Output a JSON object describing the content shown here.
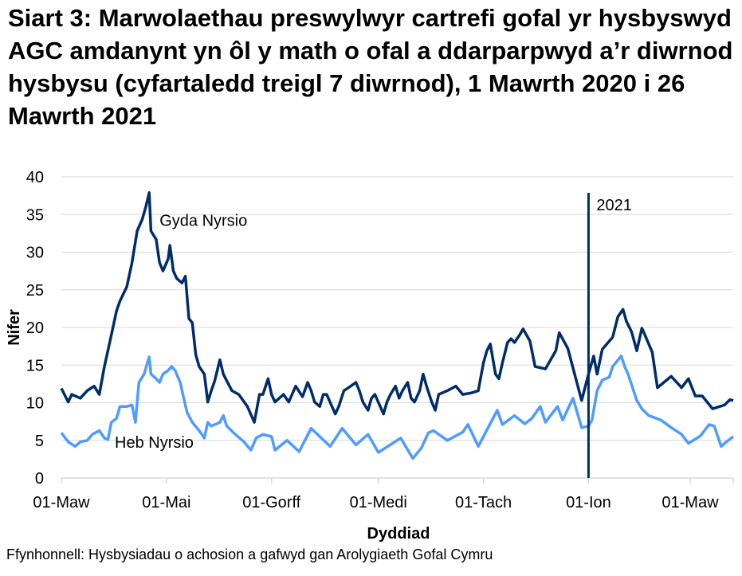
{
  "chart_data": {
    "type": "line",
    "title": "Siart 3: Marwolaethau preswylwyr cartrefi gofal yr hysbyswyd AGC amdanynt yn ôl y math o ofal a ddarparpwyd a’r diwrnod hysbysu (cyfartaledd treigl 7 diwrnod), 1 Mawrth 2020 i 26 Mawrth 2021",
    "xlabel": "Dyddiad",
    "ylabel": "Nifer",
    "x_units": "days since 2020-03-01",
    "xlim": [
      0,
      390
    ],
    "ylim": [
      0,
      40
    ],
    "yticks": [
      0,
      5,
      10,
      15,
      20,
      25,
      30,
      35,
      40
    ],
    "xticks": [
      {
        "day": 0,
        "label": "01-Maw"
      },
      {
        "day": 61,
        "label": "01-Mai"
      },
      {
        "day": 122,
        "label": "01-Gorff"
      },
      {
        "day": 184,
        "label": "01-Medi"
      },
      {
        "day": 245,
        "label": "01-Tach"
      },
      {
        "day": 306,
        "label": "01-Ion"
      },
      {
        "day": 365,
        "label": "01-Maw"
      }
    ],
    "grid": true,
    "annotations": [
      {
        "day": 306,
        "label": "2021",
        "type": "vertical-line"
      }
    ],
    "series": [
      {
        "name": "Gyda Nyrsio",
        "color": "#002d6a",
        "label_pos": [
          57,
          33.5
        ],
        "points": [
          [
            0,
            11.9
          ],
          [
            4,
            10.1
          ],
          [
            6,
            11.1
          ],
          [
            11,
            10.6
          ],
          [
            15,
            11.6
          ],
          [
            19,
            12.2
          ],
          [
            22,
            11.1
          ],
          [
            25,
            14.8
          ],
          [
            29,
            19.0
          ],
          [
            32,
            22.2
          ],
          [
            34,
            23.5
          ],
          [
            38,
            25.4
          ],
          [
            41,
            28.6
          ],
          [
            44,
            32.8
          ],
          [
            47,
            34.4
          ],
          [
            49,
            36.0
          ],
          [
            51,
            37.9
          ],
          [
            52,
            32.8
          ],
          [
            55,
            31.7
          ],
          [
            57,
            28.6
          ],
          [
            59,
            27.5
          ],
          [
            62,
            29.1
          ],
          [
            63,
            30.9
          ],
          [
            65,
            27.5
          ],
          [
            67,
            26.5
          ],
          [
            70,
            25.9
          ],
          [
            72,
            26.8
          ],
          [
            74,
            21.2
          ],
          [
            76,
            20.6
          ],
          [
            78,
            16.4
          ],
          [
            80,
            14.8
          ],
          [
            83,
            13.8
          ],
          [
            85,
            10.1
          ],
          [
            87,
            11.6
          ],
          [
            89,
            12.9
          ],
          [
            92,
            15.7
          ],
          [
            94,
            13.8
          ],
          [
            96,
            12.9
          ],
          [
            99,
            11.6
          ],
          [
            103,
            11.1
          ],
          [
            108,
            9.5
          ],
          [
            112,
            7.4
          ],
          [
            115,
            11.1
          ],
          [
            117,
            11.1
          ],
          [
            120,
            13.2
          ],
          [
            122,
            11.1
          ],
          [
            124,
            10.1
          ],
          [
            129,
            11.1
          ],
          [
            132,
            10.1
          ],
          [
            136,
            12.2
          ],
          [
            140,
            10.8
          ],
          [
            143,
            12.7
          ],
          [
            145,
            11.6
          ],
          [
            147,
            10.1
          ],
          [
            150,
            9.5
          ],
          [
            152,
            11.1
          ],
          [
            154,
            11.1
          ],
          [
            159,
            8.5
          ],
          [
            161,
            9.5
          ],
          [
            164,
            11.6
          ],
          [
            168,
            12.2
          ],
          [
            171,
            12.7
          ],
          [
            173,
            11.6
          ],
          [
            175,
            10.1
          ],
          [
            178,
            9.0
          ],
          [
            180,
            10.6
          ],
          [
            182,
            11.1
          ],
          [
            187,
            8.5
          ],
          [
            189,
            10.1
          ],
          [
            191,
            11.1
          ],
          [
            194,
            12.2
          ],
          [
            196,
            10.6
          ],
          [
            198,
            11.6
          ],
          [
            201,
            12.7
          ],
          [
            203,
            10.6
          ],
          [
            205,
            10.1
          ],
          [
            208,
            11.6
          ],
          [
            210,
            13.8
          ],
          [
            212,
            12.2
          ],
          [
            215,
            10.1
          ],
          [
            217,
            9.0
          ],
          [
            219,
            11.1
          ],
          [
            224,
            11.6
          ],
          [
            229,
            12.2
          ],
          [
            233,
            11.1
          ],
          [
            238,
            11.3
          ],
          [
            242,
            11.6
          ],
          [
            245,
            15.3
          ],
          [
            247,
            16.9
          ],
          [
            249,
            17.8
          ],
          [
            252,
            13.8
          ],
          [
            254,
            13.2
          ],
          [
            256,
            15.3
          ],
          [
            259,
            18.0
          ],
          [
            261,
            18.5
          ],
          [
            263,
            18.0
          ],
          [
            266,
            19.0
          ],
          [
            268,
            19.8
          ],
          [
            272,
            18.2
          ],
          [
            275,
            14.8
          ],
          [
            281,
            14.5
          ],
          [
            287,
            16.9
          ],
          [
            289,
            19.3
          ],
          [
            294,
            17.2
          ],
          [
            297,
            14.6
          ],
          [
            302,
            10.3
          ],
          [
            306,
            13.8
          ],
          [
            309,
            16.2
          ],
          [
            311,
            13.8
          ],
          [
            314,
            17.1
          ],
          [
            320,
            18.7
          ],
          [
            323,
            21.4
          ],
          [
            326,
            22.4
          ],
          [
            328,
            20.8
          ],
          [
            331,
            19.4
          ],
          [
            334,
            16.9
          ],
          [
            337,
            19.9
          ],
          [
            338,
            19.4
          ],
          [
            343,
            16.7
          ],
          [
            346,
            12.0
          ],
          [
            354,
            13.5
          ],
          [
            360,
            12.0
          ],
          [
            364,
            13.2
          ],
          [
            368,
            10.9
          ],
          [
            372,
            10.9
          ],
          [
            378,
            9.2
          ],
          [
            385,
            9.7
          ],
          [
            388,
            10.4
          ],
          [
            390,
            10.3
          ]
        ]
      },
      {
        "name": "Heb Nyrsio",
        "color": "#4f9bff",
        "label_pos": [
          31,
          4.0
        ],
        "points": [
          [
            0,
            6.0
          ],
          [
            4,
            4.8
          ],
          [
            8,
            4.2
          ],
          [
            11,
            4.8
          ],
          [
            15,
            5.0
          ],
          [
            18,
            5.8
          ],
          [
            22,
            6.3
          ],
          [
            25,
            5.3
          ],
          [
            27,
            5.1
          ],
          [
            29,
            7.4
          ],
          [
            32,
            7.9
          ],
          [
            34,
            9.5
          ],
          [
            38,
            9.5
          ],
          [
            41,
            9.7
          ],
          [
            43,
            7.4
          ],
          [
            45,
            12.7
          ],
          [
            48,
            13.8
          ],
          [
            51,
            16.1
          ],
          [
            52,
            13.8
          ],
          [
            55,
            13.2
          ],
          [
            57,
            12.7
          ],
          [
            59,
            13.8
          ],
          [
            62,
            14.3
          ],
          [
            64,
            14.8
          ],
          [
            66,
            14.3
          ],
          [
            69,
            12.7
          ],
          [
            71,
            10.6
          ],
          [
            73,
            8.7
          ],
          [
            76,
            7.4
          ],
          [
            80,
            6.3
          ],
          [
            83,
            5.3
          ],
          [
            85,
            7.4
          ],
          [
            87,
            6.9
          ],
          [
            92,
            7.4
          ],
          [
            94,
            8.3
          ],
          [
            96,
            6.9
          ],
          [
            101,
            5.8
          ],
          [
            106,
            4.8
          ],
          [
            110,
            3.7
          ],
          [
            113,
            5.3
          ],
          [
            117,
            5.8
          ],
          [
            122,
            5.5
          ],
          [
            124,
            3.7
          ],
          [
            131,
            5.0
          ],
          [
            138,
            3.5
          ],
          [
            145,
            6.6
          ],
          [
            156,
            4.2
          ],
          [
            163,
            6.6
          ],
          [
            171,
            4.4
          ],
          [
            178,
            5.8
          ],
          [
            184,
            3.4
          ],
          [
            197,
            5.3
          ],
          [
            204,
            2.6
          ],
          [
            209,
            4.0
          ],
          [
            213,
            6.0
          ],
          [
            216,
            6.3
          ],
          [
            224,
            5.0
          ],
          [
            233,
            6.1
          ],
          [
            236,
            7.1
          ],
          [
            242,
            4.2
          ],
          [
            253,
            9.0
          ],
          [
            256,
            7.1
          ],
          [
            263,
            8.3
          ],
          [
            269,
            7.2
          ],
          [
            273,
            7.9
          ],
          [
            278,
            9.5
          ],
          [
            281,
            7.4
          ],
          [
            288,
            9.5
          ],
          [
            291,
            7.7
          ],
          [
            297,
            10.6
          ],
          [
            302,
            6.7
          ],
          [
            306,
            6.9
          ],
          [
            308,
            7.7
          ],
          [
            311,
            11.6
          ],
          [
            314,
            13.0
          ],
          [
            318,
            13.4
          ],
          [
            320,
            14.8
          ],
          [
            325,
            16.2
          ],
          [
            327,
            14.8
          ],
          [
            329,
            13.8
          ],
          [
            334,
            10.3
          ],
          [
            337,
            9.2
          ],
          [
            341,
            8.3
          ],
          [
            348,
            7.7
          ],
          [
            354,
            6.7
          ],
          [
            360,
            5.8
          ],
          [
            364,
            4.6
          ],
          [
            371,
            5.6
          ],
          [
            376,
            7.1
          ],
          [
            379,
            6.9
          ],
          [
            383,
            4.2
          ],
          [
            386,
            4.8
          ],
          [
            390,
            5.5
          ]
        ]
      }
    ]
  },
  "source": "Ffynhonnell: Hysbysiadau o achosion a gafwyd gan Arolygiaeth Gofal Cymru"
}
